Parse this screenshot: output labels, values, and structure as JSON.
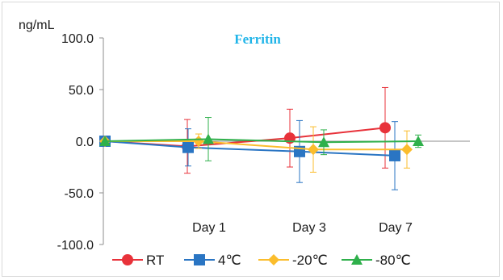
{
  "chart_data": {
    "type": "line",
    "title": "Ferritin",
    "ylabel": "ng/mL",
    "ylim": [
      -100,
      100
    ],
    "y_ticks": [
      "100.0",
      "50.0",
      "0.0",
      "-50.0",
      "-100.0"
    ],
    "y_tick_values": [
      100,
      50,
      0,
      -50,
      -100
    ],
    "categories": [
      "",
      "Day 1",
      "Day 3",
      "Day 7"
    ],
    "grid": false,
    "legend_position": "bottom",
    "series": [
      {
        "name": "RT",
        "color": "#e8323a",
        "marker": "circle",
        "values": [
          0,
          -5,
          3,
          13
        ],
        "err": [
          0,
          26,
          28,
          39
        ]
      },
      {
        "name": "4℃",
        "color": "#2a75c3",
        "marker": "square",
        "values": [
          0,
          -6,
          -10,
          -14
        ],
        "err": [
          0,
          18,
          30,
          33
        ]
      },
      {
        "name": "-20℃",
        "color": "#fbbd2d",
        "marker": "diamond",
        "values": [
          0,
          0,
          -8,
          -8
        ],
        "err": [
          0,
          7,
          22,
          18
        ]
      },
      {
        "name": "-80℃",
        "color": "#2fb04b",
        "marker": "triangle",
        "values": [
          0,
          2,
          -1,
          0
        ],
        "err": [
          0,
          21,
          12,
          6
        ]
      }
    ]
  }
}
